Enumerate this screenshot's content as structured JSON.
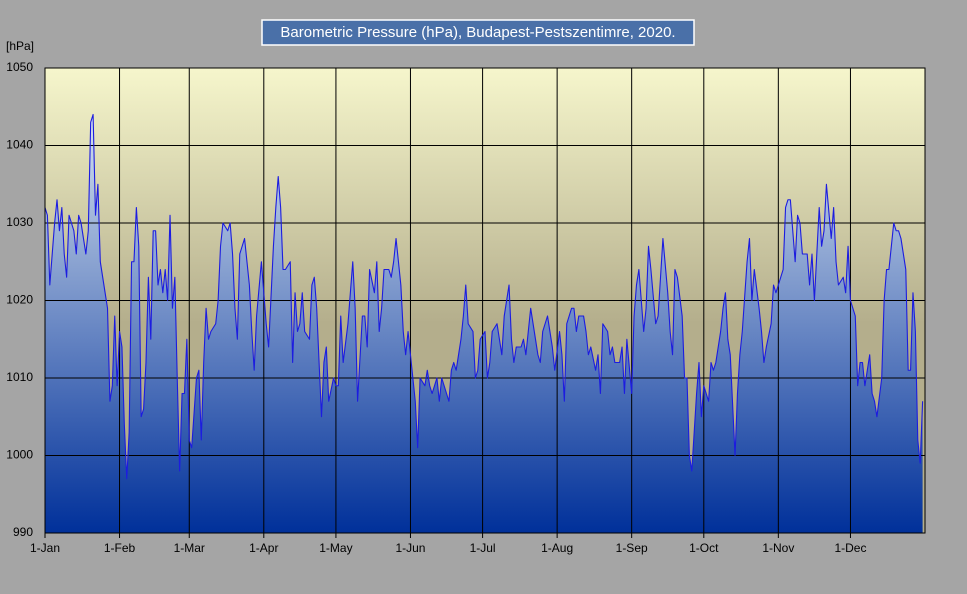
{
  "chart_data": {
    "type": "area",
    "title": "Barometric Pressure (hPa), Budapest-Pestszentimre, 2020.",
    "ylabel": "[hPa]",
    "color": "#1c1ce0",
    "fill_colors": [
      "#d6e2ef",
      "#00309a"
    ],
    "plot_colors": [
      "#f6f6cc",
      "#b4ae8c"
    ],
    "grid": true,
    "xlim": [
      0,
      366
    ],
    "ylim": [
      990,
      1050
    ],
    "yticks": [
      990,
      1000,
      1010,
      1020,
      1030,
      1040,
      1050
    ],
    "xticks": [
      {
        "value": 0,
        "label": "1-Jan"
      },
      {
        "value": 31,
        "label": "1-Feb"
      },
      {
        "value": 60,
        "label": "1-Mar"
      },
      {
        "value": 91,
        "label": "1-Apr"
      },
      {
        "value": 121,
        "label": "1-May"
      },
      {
        "value": 152,
        "label": "1-Jun"
      },
      {
        "value": 182,
        "label": "1-Jul"
      },
      {
        "value": 213,
        "label": "1-Aug"
      },
      {
        "value": 244,
        "label": "1-Sep"
      },
      {
        "value": 274,
        "label": "1-Oct"
      },
      {
        "value": 305,
        "label": "1-Nov"
      },
      {
        "value": 335,
        "label": "1-Dec"
      }
    ],
    "x": [
      0,
      1,
      2,
      4,
      5,
      6,
      7,
      8,
      9,
      10,
      12,
      13,
      14,
      15,
      17,
      18,
      19,
      20,
      21,
      22,
      23,
      24,
      26,
      27,
      28,
      29,
      30,
      31,
      32,
      33,
      34,
      35,
      36,
      37,
      38,
      39,
      40,
      41,
      42,
      43,
      44,
      45,
      46,
      47,
      48,
      49,
      50,
      51,
      52,
      53,
      54,
      55,
      56,
      57,
      58,
      59,
      60,
      61,
      63,
      64,
      65,
      66,
      67,
      68,
      69,
      71,
      72,
      73,
      74,
      76,
      77,
      78,
      79,
      80,
      81,
      82,
      83,
      85,
      86,
      87,
      88,
      90,
      91,
      92,
      93,
      95,
      96,
      97,
      98,
      99,
      100,
      102,
      103,
      104,
      105,
      106,
      107,
      108,
      110,
      111,
      112,
      113,
      115,
      116,
      117,
      118,
      120,
      121,
      122,
      123,
      124,
      126,
      127,
      128,
      129,
      130,
      132,
      133,
      134,
      135,
      137,
      138,
      139,
      140,
      141,
      143,
      144,
      145,
      146,
      148,
      149,
      150,
      151,
      153,
      154,
      155,
      156,
      158,
      159,
      160,
      161,
      163,
      164,
      165,
      166,
      168,
      169,
      170,
      171,
      173,
      174,
      175,
      176,
      178,
      179,
      180,
      181,
      183,
      184,
      185,
      186,
      188,
      189,
      190,
      191,
      193,
      194,
      195,
      196,
      198,
      199,
      200,
      201,
      202,
      204,
      205,
      206,
      207,
      209,
      210,
      211,
      212,
      214,
      215,
      216,
      217,
      219,
      220,
      221,
      222,
      224,
      225,
      226,
      227,
      229,
      230,
      231,
      232,
      234,
      235,
      236,
      237,
      239,
      240,
      241,
      242,
      244,
      245,
      246,
      247,
      249,
      250,
      251,
      252,
      254,
      255,
      256,
      257,
      259,
      260,
      261,
      262,
      263,
      265,
      266,
      267,
      268,
      269,
      271,
      272,
      273,
      274,
      276,
      277,
      278,
      279,
      281,
      282,
      283,
      284,
      285,
      287,
      288,
      289,
      290,
      292,
      293,
      294,
      295,
      297,
      298,
      299,
      300,
      302,
      303,
      304,
      305,
      307,
      308,
      309,
      310,
      312,
      313,
      314,
      315,
      317,
      318,
      319,
      320,
      322,
      323,
      324,
      325,
      327,
      328,
      329,
      330,
      332,
      333,
      334,
      335,
      337,
      338,
      339,
      340,
      341,
      343,
      344,
      345,
      346,
      348,
      349,
      350,
      351,
      353,
      354,
      355,
      356,
      358,
      359,
      360,
      361,
      362,
      363,
      364,
      365
    ],
    "values": [
      1032,
      1031,
      1022,
      1030,
      1033,
      1029,
      1032,
      1026,
      1023,
      1031,
      1029,
      1026,
      1031,
      1030,
      1026,
      1029,
      1043,
      1044,
      1031,
      1035,
      1025,
      1023,
      1019,
      1007,
      1009,
      1018,
      1009,
      1016,
      1014,
      1004,
      997,
      1003,
      1025,
      1025,
      1032,
      1027,
      1005,
      1006,
      1012,
      1023,
      1015,
      1029,
      1029,
      1022,
      1024,
      1021,
      1024,
      1020,
      1031,
      1019,
      1023,
      1010,
      998,
      1008,
      1008,
      1015,
      1002,
      1001,
      1010,
      1011,
      1002,
      1012,
      1019,
      1015,
      1016,
      1017,
      1020,
      1027,
      1030,
      1029,
      1030,
      1026,
      1019,
      1015,
      1026,
      1027,
      1028,
      1022,
      1016,
      1011,
      1018,
      1025,
      1021,
      1017,
      1014,
      1027,
      1032,
      1036,
      1032,
      1024,
      1024,
      1025,
      1012,
      1021,
      1016,
      1017,
      1021,
      1016,
      1015,
      1022,
      1023,
      1019,
      1005,
      1012,
      1014,
      1007,
      1010,
      1009,
      1009,
      1018,
      1012,
      1017,
      1021,
      1025,
      1019,
      1007,
      1018,
      1018,
      1014,
      1024,
      1021,
      1025,
      1016,
      1019,
      1024,
      1024,
      1023,
      1025,
      1028,
      1022,
      1016,
      1013,
      1016,
      1010,
      1007,
      1001,
      1010,
      1009,
      1011,
      1009,
      1008,
      1010,
      1007,
      1010,
      1009,
      1007,
      1011,
      1012,
      1011,
      1015,
      1018,
      1022,
      1017,
      1016,
      1010,
      1011,
      1015,
      1016,
      1010,
      1012,
      1016,
      1017,
      1015,
      1013,
      1018,
      1022,
      1015,
      1012,
      1014,
      1014,
      1015,
      1013,
      1016,
      1019,
      1015,
      1013,
      1012,
      1016,
      1018,
      1016,
      1014,
      1011,
      1016,
      1013,
      1007,
      1017,
      1019,
      1019,
      1016,
      1018,
      1018,
      1016,
      1013,
      1014,
      1011,
      1013,
      1008,
      1017,
      1016,
      1013,
      1014,
      1012,
      1012,
      1014,
      1008,
      1015,
      1008,
      1018,
      1022,
      1024,
      1016,
      1019,
      1027,
      1024,
      1017,
      1018,
      1023,
      1028,
      1021,
      1016,
      1013,
      1024,
      1023,
      1018,
      1010,
      1010,
      1000,
      998,
      1008,
      1012,
      1005,
      1009,
      1007,
      1012,
      1011,
      1012,
      1016,
      1019,
      1021,
      1015,
      1013,
      1000,
      1008,
      1013,
      1016,
      1025,
      1028,
      1020,
      1024,
      1019,
      1016,
      1012,
      1014,
      1017,
      1022,
      1021,
      1022,
      1024,
      1032,
      1033,
      1033,
      1025,
      1031,
      1030,
      1026,
      1026,
      1022,
      1026,
      1020,
      1032,
      1027,
      1029,
      1035,
      1028,
      1032,
      1025,
      1022,
      1023,
      1021,
      1027,
      1020,
      1018,
      1009,
      1012,
      1012,
      1009,
      1013,
      1008,
      1007,
      1005,
      1010,
      1020,
      1024,
      1024,
      1030,
      1029,
      1029,
      1028,
      1024,
      1011,
      1011,
      1021,
      1016,
      1002,
      999,
      1007
    ]
  }
}
